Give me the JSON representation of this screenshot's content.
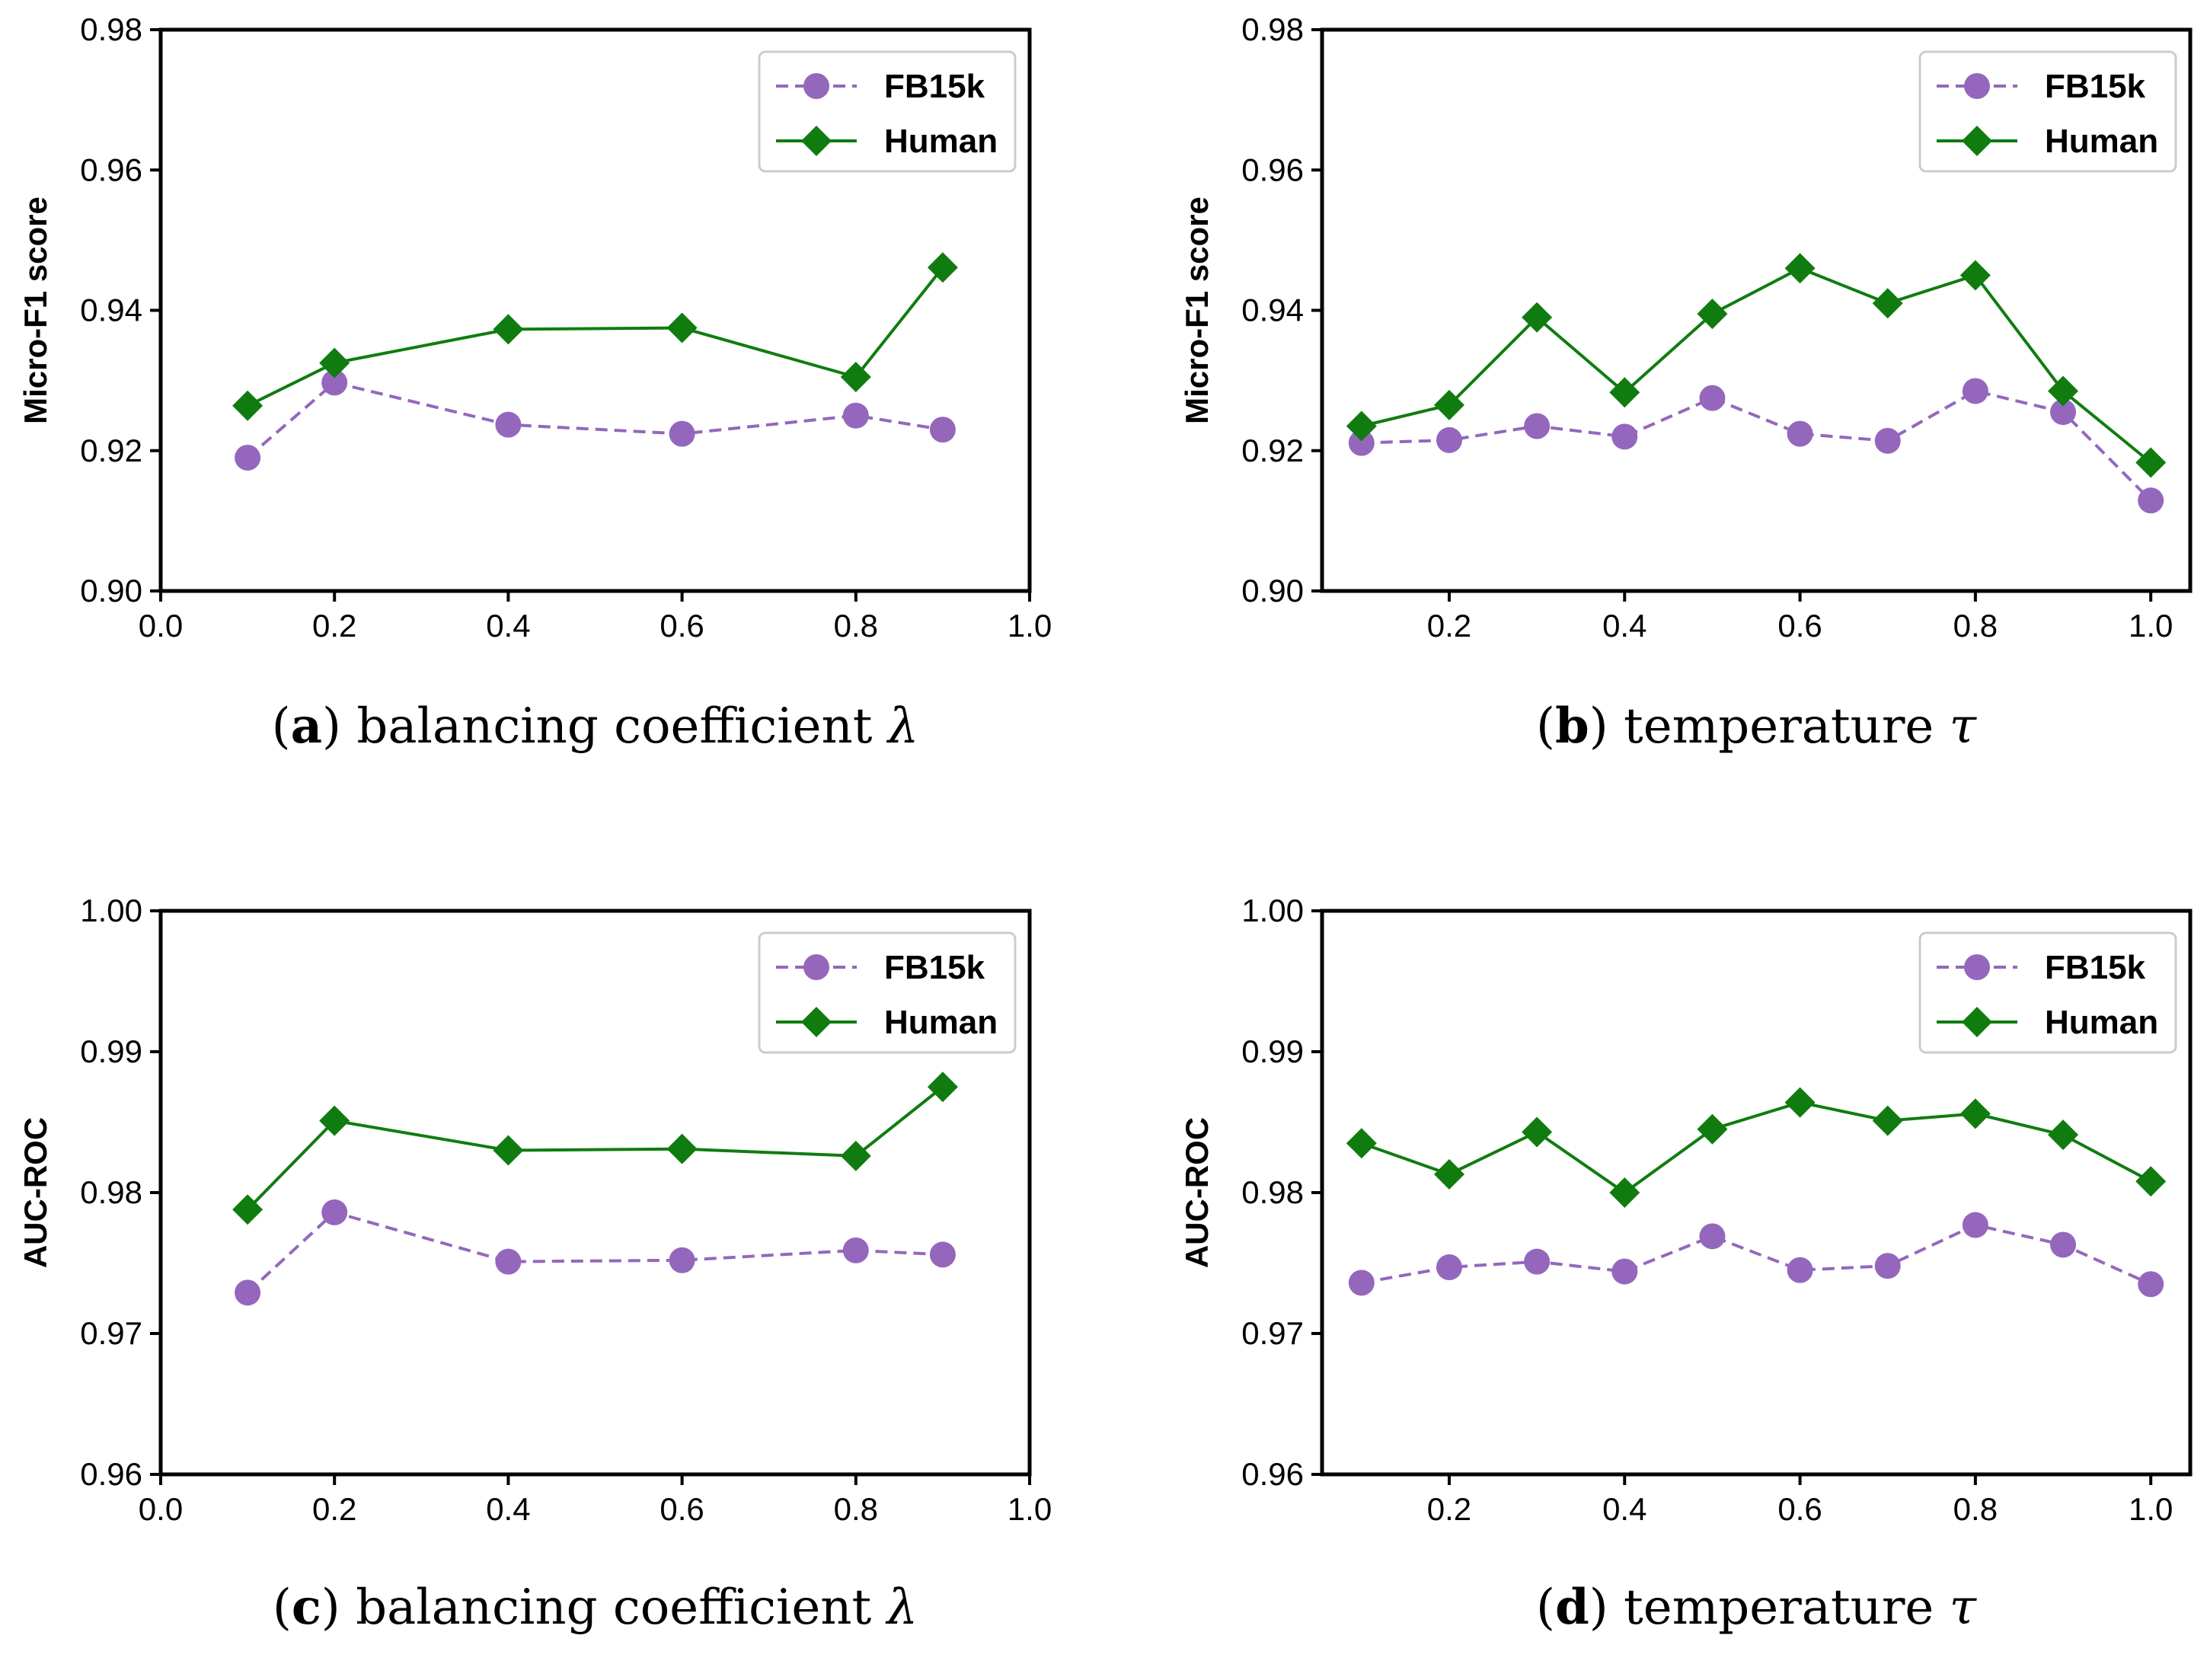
{
  "colors": {
    "fb15k": "#9467bd",
    "human": "#107c10",
    "axis": "#000000",
    "legend_border": "#cccccc"
  },
  "chart_data": [
    {
      "id": "a",
      "type": "line",
      "caption_label": "a",
      "caption_text": "balancing coefficient",
      "caption_symbol": "λ",
      "ylabel": "Micro-F1 score",
      "xlabel": "",
      "xlim": [
        0.0,
        1.0
      ],
      "ylim": [
        0.9,
        0.98
      ],
      "xticks": [
        "0.0",
        "0.2",
        "0.4",
        "0.6",
        "0.8",
        "1.0"
      ],
      "xtick_values": [
        0.0,
        0.2,
        0.4,
        0.6,
        0.8,
        1.0
      ],
      "yticks": [
        "0.90",
        "0.92",
        "0.94",
        "0.96",
        "0.98"
      ],
      "ytick_values": [
        0.9,
        0.92,
        0.94,
        0.96,
        0.98
      ],
      "grid": false,
      "legend_position": "top-right",
      "x": [
        0.1,
        0.2,
        0.4,
        0.6,
        0.8,
        0.9
      ],
      "series": [
        {
          "name": "FB15k",
          "marker": "circle",
          "style": "dashed",
          "values": [
            0.919,
            0.9297,
            0.9237,
            0.9224,
            0.925,
            0.923
          ]
        },
        {
          "name": "Human",
          "marker": "diamond",
          "style": "solid",
          "values": [
            0.9264,
            0.9325,
            0.9373,
            0.9375,
            0.9305,
            0.9461
          ]
        }
      ]
    },
    {
      "id": "b",
      "type": "line",
      "caption_label": "b",
      "caption_text": "temperature",
      "caption_symbol": "τ",
      "ylabel": "Micro-F1 score",
      "xlabel": "",
      "xlim": [
        0.055,
        1.045
      ],
      "ylim": [
        0.9,
        0.98
      ],
      "xticks": [
        "0.2",
        "0.4",
        "0.6",
        "0.8",
        "1.0"
      ],
      "xtick_values": [
        0.2,
        0.4,
        0.6,
        0.8,
        1.0
      ],
      "yticks": [
        "0.90",
        "0.92",
        "0.94",
        "0.96",
        "0.98"
      ],
      "ytick_values": [
        0.9,
        0.92,
        0.94,
        0.96,
        0.98
      ],
      "grid": false,
      "legend_position": "top-right",
      "x": [
        0.1,
        0.2,
        0.3,
        0.4,
        0.5,
        0.6,
        0.7,
        0.8,
        0.9,
        1.0
      ],
      "series": [
        {
          "name": "FB15k",
          "marker": "circle",
          "style": "dashed",
          "values": [
            0.9211,
            0.9215,
            0.9235,
            0.922,
            0.9275,
            0.9224,
            0.9214,
            0.9285,
            0.9255,
            0.9129
          ]
        },
        {
          "name": "Human",
          "marker": "diamond",
          "style": "solid",
          "values": [
            0.9235,
            0.9265,
            0.939,
            0.9283,
            0.9395,
            0.946,
            0.941,
            0.945,
            0.9285,
            0.9183
          ]
        }
      ]
    },
    {
      "id": "c",
      "type": "line",
      "caption_label": "c",
      "caption_text": "balancing coefficient",
      "caption_symbol": "λ",
      "ylabel": "AUC-ROC",
      "xlabel": "",
      "xlim": [
        0.0,
        1.0
      ],
      "ylim": [
        0.96,
        1.0
      ],
      "xticks": [
        "0.0",
        "0.2",
        "0.4",
        "0.6",
        "0.8",
        "1.0"
      ],
      "xtick_values": [
        0.0,
        0.2,
        0.4,
        0.6,
        0.8,
        1.0
      ],
      "yticks": [
        "0.96",
        "0.97",
        "0.98",
        "0.99",
        "1.00"
      ],
      "ytick_values": [
        0.96,
        0.97,
        0.98,
        0.99,
        1.0
      ],
      "grid": false,
      "legend_position": "top-right",
      "x": [
        0.1,
        0.2,
        0.4,
        0.6,
        0.8,
        0.9
      ],
      "series": [
        {
          "name": "FB15k",
          "marker": "circle",
          "style": "dashed",
          "values": [
            0.9729,
            0.9786,
            0.9751,
            0.9752,
            0.9759,
            0.9756
          ]
        },
        {
          "name": "Human",
          "marker": "diamond",
          "style": "solid",
          "values": [
            0.9788,
            0.9851,
            0.983,
            0.9831,
            0.9826,
            0.9875
          ]
        }
      ]
    },
    {
      "id": "d",
      "type": "line",
      "caption_label": "d",
      "caption_text": "temperature",
      "caption_symbol": "τ",
      "ylabel": "AUC-ROC",
      "xlabel": "",
      "xlim": [
        0.055,
        1.045
      ],
      "ylim": [
        0.96,
        1.0
      ],
      "xticks": [
        "0.2",
        "0.4",
        "0.6",
        "0.8",
        "1.0"
      ],
      "xtick_values": [
        0.2,
        0.4,
        0.6,
        0.8,
        1.0
      ],
      "yticks": [
        "0.96",
        "0.97",
        "0.98",
        "0.99",
        "1.00"
      ],
      "ytick_values": [
        0.96,
        0.97,
        0.98,
        0.99,
        1.0
      ],
      "grid": false,
      "legend_position": "top-right",
      "x": [
        0.1,
        0.2,
        0.3,
        0.4,
        0.5,
        0.6,
        0.7,
        0.8,
        0.9,
        1.0
      ],
      "series": [
        {
          "name": "FB15k",
          "marker": "circle",
          "style": "dashed",
          "values": [
            0.9736,
            0.9747,
            0.9751,
            0.9744,
            0.9769,
            0.9745,
            0.9748,
            0.9777,
            0.9763,
            0.9735
          ]
        },
        {
          "name": "Human",
          "marker": "diamond",
          "style": "solid",
          "values": [
            0.9835,
            0.9813,
            0.9843,
            0.98,
            0.9845,
            0.9864,
            0.9851,
            0.9856,
            0.9841,
            0.9808
          ]
        }
      ]
    }
  ]
}
